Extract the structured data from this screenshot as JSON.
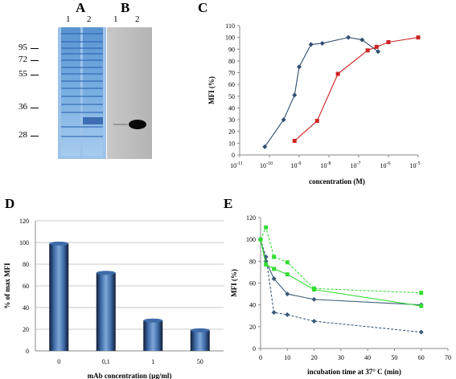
{
  "panels": {
    "A": {
      "letter": "A",
      "lanes": [
        "1",
        "2"
      ],
      "markers": [
        "95",
        "72",
        "55",
        "36",
        "28"
      ],
      "marker_kda": [
        95,
        72,
        55,
        36,
        28
      ]
    },
    "B": {
      "letter": "B",
      "lanes": [
        "1",
        "2"
      ]
    }
  },
  "chart_data": [
    {
      "panel": "C",
      "type": "line",
      "xscale": "log",
      "xlabel": "concentration (M)",
      "ylabel": "MFI (%)",
      "xlim": [
        1e-11,
        1e-05
      ],
      "ylim": [
        0,
        110
      ],
      "yticks": [
        0,
        10,
        20,
        30,
        40,
        50,
        60,
        70,
        80,
        90,
        100,
        110
      ],
      "xtick_base": "10",
      "xtick_exps": [
        "-11",
        "-10",
        "-9",
        "-8",
        "-7",
        "-6",
        "-5"
      ],
      "series": [
        {
          "color": "#2f4f6f",
          "marker": "diamond",
          "x": [
            7e-11,
            3e-10,
            7e-10,
            1e-09,
            2.5e-09,
            6e-09,
            4.5e-08,
            1.3e-07,
            4.5e-07
          ],
          "y": [
            7,
            30,
            51,
            75,
            94,
            95,
            100,
            98,
            88
          ]
        },
        {
          "color": "#cc2222",
          "marker": "square",
          "x": [
            7e-10,
            4e-09,
            2e-08,
            2e-07,
            4e-07,
            1e-06,
            1e-05
          ],
          "y": [
            12,
            29,
            69,
            89,
            92,
            96,
            100
          ]
        }
      ]
    },
    {
      "panel": "D",
      "type": "bar",
      "xlabel": "mAb concentration (µg/ml)",
      "ylabel": "% of max MFI",
      "ylim": [
        0,
        120
      ],
      "yticks": [
        0,
        20,
        40,
        60,
        80,
        100,
        120
      ],
      "grid": true,
      "categories": [
        "0",
        "0,1",
        "1",
        "50"
      ],
      "values": [
        99,
        72,
        28,
        19
      ]
    },
    {
      "panel": "E",
      "type": "line",
      "xlabel": "incubation time at 37° C (min)",
      "ylabel": "MFI (%)",
      "xlim": [
        0,
        70
      ],
      "ylim": [
        0,
        120
      ],
      "xticks": [
        0,
        10,
        20,
        30,
        40,
        50,
        60,
        70
      ],
      "yticks": [
        0,
        20,
        40,
        60,
        80,
        100,
        120
      ],
      "series": [
        {
          "color": "#3a5a7a",
          "marker": "diamond",
          "dashed": false,
          "x": [
            0,
            2,
            5,
            10,
            20,
            60
          ],
          "y": [
            100,
            80,
            64,
            50,
            45,
            40
          ]
        },
        {
          "color": "#3a5a7a",
          "marker": "diamond",
          "dashed": true,
          "x": [
            0,
            2,
            5,
            10,
            20,
            60
          ],
          "y": [
            100,
            84,
            33,
            31,
            25,
            15
          ]
        },
        {
          "color": "#33dd33",
          "marker": "square",
          "dashed": false,
          "x": [
            0,
            2,
            5,
            10,
            20,
            60
          ],
          "y": [
            100,
            77,
            73,
            68,
            54,
            39
          ]
        },
        {
          "color": "#33dd33",
          "marker": "square",
          "dashed": true,
          "x": [
            0,
            2,
            5,
            10,
            20,
            60
          ],
          "y": [
            100,
            111,
            84,
            79,
            55,
            51
          ]
        }
      ]
    }
  ]
}
